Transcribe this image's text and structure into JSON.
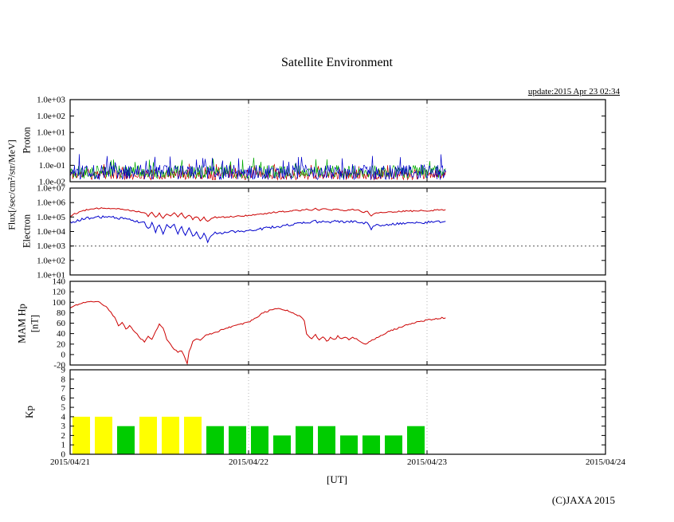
{
  "title": "Satellite Environment",
  "update_label": "update:2015 Apr 23 02:34",
  "flux_axis_label": "Flux[/sec/cm²/str/MeV]",
  "x_axis_label": "[UT]",
  "copyright": "(C)JAXA 2015",
  "x_ticks": [
    "2015/04/21",
    "2015/04/22",
    "2015/04/23",
    "2015/04/24"
  ],
  "chart_data": [
    {
      "type": "line",
      "name": "proton-flux",
      "ylabel": "Proton",
      "yscale": "log",
      "ylim": [
        0.01,
        1000
      ],
      "ytick_labels": [
        "1.0e+03",
        "1.0e+02",
        "1.0e+01",
        "1.0e+00",
        "1.0e-01",
        "1.0e-02"
      ],
      "xlim_hours": [
        0,
        72
      ],
      "data_end_hour": 50.6,
      "noise_series": [
        {
          "name": "proton-red",
          "color": "#cc0000",
          "band": [
            0.013,
            0.055
          ],
          "spike": 0.13
        },
        {
          "name": "proton-green",
          "color": "#00aa00",
          "band": [
            0.016,
            0.1
          ],
          "spike": 0.3
        },
        {
          "name": "proton-blue",
          "color": "#0000cc",
          "band": [
            0.013,
            0.11
          ],
          "spike": 0.5
        }
      ]
    },
    {
      "type": "line",
      "name": "electron-flux",
      "ylabel": "Electron",
      "yscale": "log",
      "ylim": [
        10,
        10000000
      ],
      "ytick_labels": [
        "1.0e+07",
        "1.0e+06",
        "1.0e+05",
        "1.0e+04",
        "1.0e+03",
        "1.0e+02",
        "1.0e+01"
      ],
      "threshold": 1000,
      "xlim_hours": [
        0,
        72
      ],
      "series": [
        {
          "name": "electron-red",
          "color": "#cc0000",
          "jitter": 0.05,
          "x": [
            0,
            1,
            2,
            3,
            4,
            5,
            6,
            7,
            8,
            9,
            10,
            10.5,
            11,
            11.5,
            12,
            12.5,
            13,
            13.5,
            14,
            14.5,
            15,
            15.5,
            16,
            16.5,
            17,
            17.5,
            18,
            18.5,
            19,
            19.5,
            20,
            21,
            22,
            23,
            24,
            25,
            26,
            27,
            28,
            29,
            30,
            31,
            32,
            32.5,
            33,
            33.5,
            34,
            35,
            36,
            37,
            38,
            39,
            39.5,
            40,
            40.5,
            41,
            42,
            43,
            44,
            45,
            46,
            47,
            48,
            49,
            50,
            50.5
          ],
          "y": [
            120000.0,
            200000.0,
            300000.0,
            350000.0,
            400000.0,
            420000.0,
            400000.0,
            350000.0,
            300000.0,
            250000.0,
            200000.0,
            120000.0,
            220000.0,
            100000.0,
            180000.0,
            90000.0,
            160000.0,
            120000.0,
            220000.0,
            100000.0,
            180000.0,
            80000.0,
            140000.0,
            70000.0,
            110000.0,
            60000.0,
            90000.0,
            50000.0,
            80000.0,
            100000.0,
            90000.0,
            100000.0,
            110000.0,
            120000.0,
            130000.0,
            150000.0,
            170000.0,
            200000.0,
            220000.0,
            250000.0,
            280000.0,
            300000.0,
            350000.0,
            300000.0,
            400000.0,
            320000.0,
            380000.0,
            300000.0,
            350000.0,
            280000.0,
            320000.0,
            280000.0,
            220000.0,
            250000.0,
            120000.0,
            180000.0,
            200000.0,
            220000.0,
            240000.0,
            250000.0,
            260000.0,
            270000.0,
            280000.0,
            300000.0,
            320000.0,
            330000.0
          ]
        },
        {
          "name": "electron-blue",
          "color": "#0000cc",
          "jitter": 0.09,
          "x": [
            0,
            1,
            2,
            3,
            4,
            5,
            6,
            7,
            8,
            9,
            10,
            10.5,
            11,
            11.5,
            12,
            12.5,
            13,
            13.5,
            14,
            14.5,
            15,
            15.5,
            16,
            16.5,
            17,
            17.5,
            18,
            18.5,
            19,
            19.5,
            20,
            21,
            22,
            23,
            24,
            25,
            26,
            27,
            28,
            29,
            30,
            31,
            32,
            32.5,
            33,
            33.5,
            34,
            35,
            36,
            37,
            38,
            39,
            39.5,
            40,
            40.5,
            41,
            42,
            43,
            44,
            45,
            46,
            47,
            48,
            49,
            50,
            50.5
          ],
          "y": [
            40000.0,
            60000.0,
            80000.0,
            90000.0,
            100000.0,
            100000.0,
            90000.0,
            80000.0,
            60000.0,
            50000.0,
            40000.0,
            15000.0,
            35000.0,
            10000.0,
            30000.0,
            8000.0,
            25000.0,
            15000.0,
            30000.0,
            8000.0,
            20000.0,
            5000.0,
            15000.0,
            4000.0,
            10000.0,
            3000.0,
            8000.0,
            1800.0,
            6000.0,
            9000.0,
            7000.0,
            9000.0,
            10000.0,
            11000.0,
            12000.0,
            14000.0,
            16000.0,
            19000.0,
            22000.0,
            26000.0,
            30000.0,
            35000.0,
            40000.0,
            45000.0,
            50000.0,
            42000.0,
            48000.0,
            45000.0,
            50000.0,
            46000.0,
            50000.0,
            46000.0,
            35000.0,
            40000.0,
            15000.0,
            25000.0,
            30000.0,
            32000.0,
            34000.0,
            36000.0,
            38000.0,
            40000.0,
            42000.0,
            45000.0,
            48000.0,
            50000.0
          ]
        }
      ]
    },
    {
      "type": "line",
      "name": "mam-hp",
      "ylabel": "MAM Hp",
      "ylabel2": "[nT]",
      "yscale": "linear",
      "ylim": [
        -20,
        140
      ],
      "ytick_labels": [
        "140",
        "120",
        "100",
        "80",
        "60",
        "40",
        "20",
        "0",
        "-20"
      ],
      "xlim_hours": [
        0,
        72
      ],
      "series": [
        {
          "name": "hp-red",
          "color": "#cc0000",
          "jitter": 1.3,
          "x": [
            0,
            1,
            2,
            3,
            4,
            5,
            5.5,
            6,
            6.5,
            7,
            7.5,
            8,
            8.5,
            9,
            9.5,
            10,
            10.5,
            11,
            11.5,
            12,
            12.5,
            13,
            13.5,
            14,
            14.5,
            15,
            15.3,
            15.75,
            16,
            16.5,
            17,
            17.5,
            18,
            19,
            20,
            21,
            22,
            23,
            24,
            25,
            26,
            27,
            28,
            29,
            30,
            31,
            31.5,
            31.8,
            32,
            32.5,
            33,
            33.5,
            34,
            34.5,
            35,
            35.5,
            36,
            36.5,
            37,
            37.5,
            38,
            38.5,
            39,
            39.5,
            40,
            41,
            42,
            43,
            44,
            45,
            46,
            47,
            48,
            49,
            50,
            50.5
          ],
          "y": [
            90,
            95,
            100,
            102,
            100,
            90,
            80,
            70,
            55,
            62,
            48,
            56,
            45,
            40,
            30,
            25,
            35,
            28,
            45,
            58,
            50,
            30,
            20,
            10,
            5,
            8,
            0,
            -18,
            5,
            25,
            30,
            28,
            35,
            40,
            45,
            50,
            55,
            58,
            62,
            70,
            80,
            85,
            88,
            85,
            80,
            72,
            65,
            40,
            35,
            30,
            38,
            28,
            35,
            25,
            32,
            28,
            35,
            30,
            33,
            28,
            32,
            30,
            25,
            20,
            22,
            30,
            38,
            45,
            50,
            55,
            60,
            63,
            66,
            68,
            70,
            70
          ]
        }
      ]
    },
    {
      "type": "bar",
      "name": "kp-index",
      "ylabel": "Kp",
      "yscale": "linear",
      "ylim": [
        0,
        9
      ],
      "ytick_labels": [
        "9",
        "8",
        "7",
        "6",
        "5",
        "4",
        "3",
        "2",
        "1",
        "0"
      ],
      "xlim_hours": [
        0,
        72
      ],
      "bar_interval_hours": 3,
      "values": [
        4,
        4,
        3,
        4,
        4,
        4,
        3,
        3,
        3,
        2,
        3,
        3,
        2,
        2,
        2,
        3
      ],
      "colors": {
        "kp4plus": "#ffff00",
        "kpbelow4": "#00cc00"
      }
    }
  ]
}
